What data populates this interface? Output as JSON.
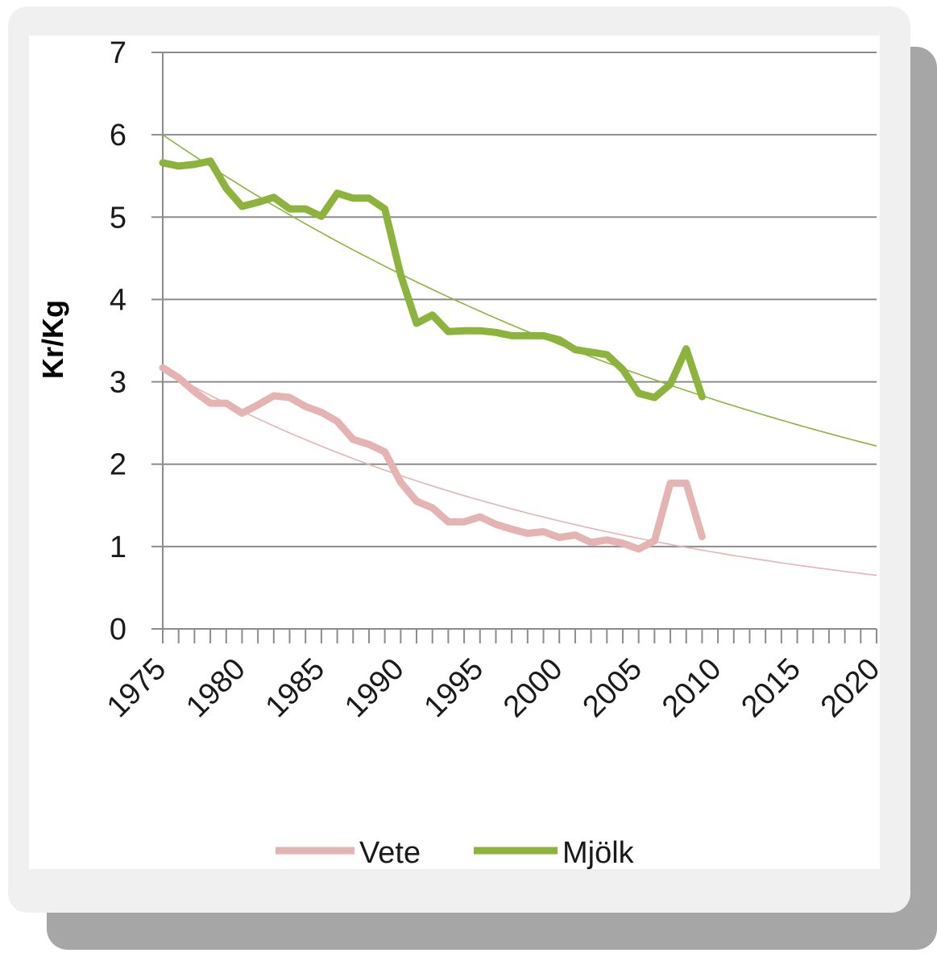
{
  "chart_data": {
    "type": "line",
    "title": "",
    "xlabel": "",
    "ylabel": "Kr/Kg",
    "xlim": [
      1975,
      2020
    ],
    "ylim": [
      0,
      7
    ],
    "y_ticks": [
      "0",
      "1",
      "2",
      "3",
      "4",
      "5",
      "6",
      "7"
    ],
    "x_ticks": [
      "1975",
      "1980",
      "1985",
      "1990",
      "1995",
      "2000",
      "2005",
      "2010",
      "2015",
      "2020"
    ],
    "grid": true,
    "legend": "bottom",
    "x": [
      1975,
      1976,
      1977,
      1978,
      1979,
      1980,
      1981,
      1982,
      1983,
      1984,
      1985,
      1986,
      1987,
      1988,
      1989,
      1990,
      1991,
      1992,
      1993,
      1994,
      1995,
      1996,
      1997,
      1998,
      1999,
      2000,
      2001,
      2002,
      2003,
      2004,
      2005,
      2006,
      2007,
      2008,
      2009
    ],
    "series": [
      {
        "name": "Vete",
        "color": "#e6b3b3",
        "values": [
          3.17,
          3.05,
          2.88,
          2.74,
          2.74,
          2.62,
          2.72,
          2.83,
          2.81,
          2.7,
          2.63,
          2.52,
          2.3,
          2.24,
          2.15,
          1.78,
          1.55,
          1.47,
          1.3,
          1.3,
          1.36,
          1.27,
          1.21,
          1.16,
          1.18,
          1.11,
          1.14,
          1.05,
          1.08,
          1.04,
          0.97,
          1.07,
          1.77,
          1.77,
          1.12
        ]
      },
      {
        "name": "Mjölk",
        "color": "#8cb33c",
        "values": [
          5.66,
          5.62,
          5.64,
          5.68,
          5.35,
          5.13,
          5.18,
          5.24,
          5.1,
          5.1,
          5.01,
          5.29,
          5.23,
          5.23,
          5.1,
          4.3,
          3.71,
          3.81,
          3.61,
          3.62,
          3.62,
          3.6,
          3.56,
          3.56,
          3.56,
          3.51,
          3.39,
          3.36,
          3.33,
          3.15,
          2.86,
          2.81,
          2.97,
          3.4,
          2.82
        ]
      }
    ],
    "trendlines": [
      {
        "series": "Vete",
        "color": "#e6b3b3",
        "start": [
          1975,
          3.15
        ],
        "end": [
          2020,
          0.65
        ]
      },
      {
        "series": "Mjölk",
        "color": "#8cb33c",
        "start": [
          1975,
          6.0
        ],
        "end": [
          2020,
          2.22
        ]
      }
    ]
  }
}
